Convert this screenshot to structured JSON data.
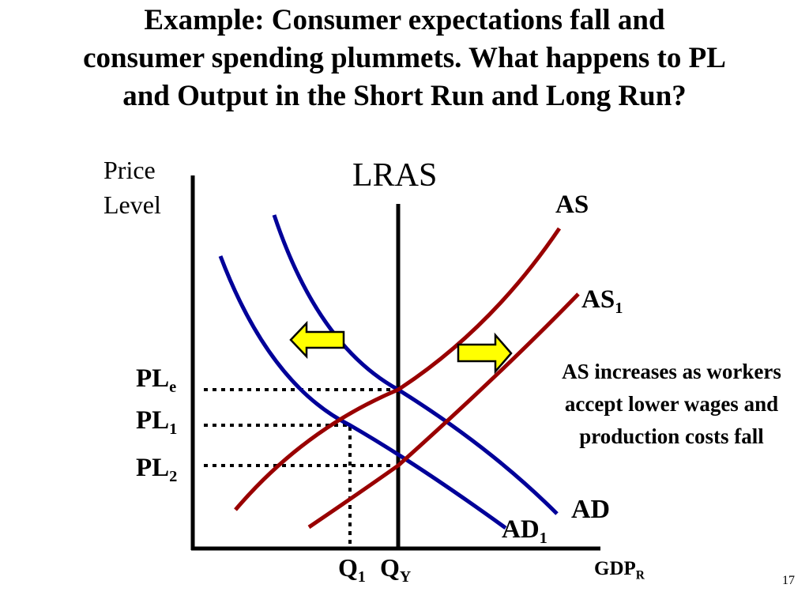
{
  "slide": {
    "title_line1": "Example: Consumer expectations fall and",
    "title_line2": "consumer spending plummets. What happens to PL",
    "title_line3": "and Output in the Short Run and Long Run?",
    "slide_number": "17"
  },
  "diagram": {
    "y_axis_line1": "Price",
    "y_axis_line2": "Level",
    "x_axis_main": "GDP",
    "x_axis_sub": "R",
    "lras_label": "LRAS",
    "as_label": "AS",
    "as1_main": "AS",
    "as1_sub": "1",
    "ad_label": "AD",
    "ad1_main": "AD",
    "ad1_sub": "1",
    "ple_main": "PL",
    "ple_sub": "e",
    "pl1_main": "PL",
    "pl1_sub": "1",
    "pl2_main": "PL",
    "pl2_sub": "2",
    "q1_main": "Q",
    "q1_sub": "1",
    "qy_main": "Q",
    "qy_sub": "Y",
    "note": "AS increases as workers accept lower wages and production costs fall",
    "colors": {
      "ad_curves": "#000099",
      "as_curves": "#990000",
      "arrow_fill": "#ffff00",
      "axis": "#000000"
    }
  }
}
